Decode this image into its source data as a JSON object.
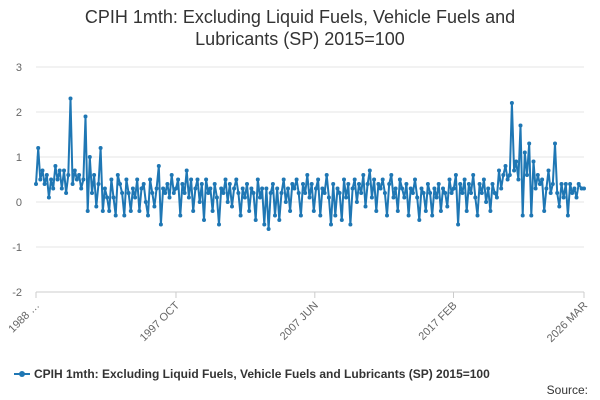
{
  "chart_data": {
    "type": "line",
    "title_lines": [
      "CPIH 1mth: Excluding Liquid Fuels, Vehicle Fuels and",
      "Lubricants (SP) 2015=100"
    ],
    "xlabel": "",
    "ylabel": "",
    "ylim": [
      -2,
      3
    ],
    "yticks": [
      "3",
      "2",
      "1",
      "0",
      "-1",
      "-2"
    ],
    "xticks": [
      "1988 …",
      "1997 OCT",
      "2007 JUN",
      "2017 FEB",
      "2026 MAR"
    ],
    "series": [
      {
        "name": "CPIH 1mth: Excluding Liquid Fuels, Vehicle Fuels and Lubricants (SP) 2015=100",
        "color": "#1f77b4",
        "start": "1988 JAN",
        "end": "2026 MAR",
        "points": [
          [
            1988.0,
            0.4
          ],
          [
            1988.15,
            1.2
          ],
          [
            1988.3,
            0.5
          ],
          [
            1988.45,
            0.7
          ],
          [
            1988.6,
            0.4
          ],
          [
            1988.75,
            0.6
          ],
          [
            1988.9,
            0.1
          ],
          [
            1989.05,
            0.5
          ],
          [
            1989.2,
            0.3
          ],
          [
            1989.35,
            0.8
          ],
          [
            1989.5,
            0.5
          ],
          [
            1989.65,
            0.7
          ],
          [
            1989.8,
            0.3
          ],
          [
            1989.95,
            0.7
          ],
          [
            1990.1,
            0.2
          ],
          [
            1990.25,
            0.6
          ],
          [
            1990.4,
            2.3
          ],
          [
            1990.55,
            0.4
          ],
          [
            1990.7,
            0.7
          ],
          [
            1990.85,
            0.5
          ],
          [
            1991.0,
            0.6
          ],
          [
            1991.15,
            0.3
          ],
          [
            1991.3,
            0.5
          ],
          [
            1991.45,
            1.9
          ],
          [
            1991.6,
            -0.2
          ],
          [
            1991.75,
            1.0
          ],
          [
            1991.9,
            0.2
          ],
          [
            1992.05,
            0.6
          ],
          [
            1992.2,
            -0.1
          ],
          [
            1992.35,
            0.4
          ],
          [
            1992.5,
            1.2
          ],
          [
            1992.65,
            -0.2
          ],
          [
            1992.8,
            0.3
          ],
          [
            1992.95,
            0.1
          ],
          [
            1993.1,
            -0.2
          ],
          [
            1993.25,
            0.5
          ],
          [
            1993.4,
            0.1
          ],
          [
            1993.55,
            -0.3
          ],
          [
            1993.7,
            0.6
          ],
          [
            1993.85,
            0.4
          ],
          [
            1994.0,
            0.2
          ],
          [
            1994.15,
            -0.3
          ],
          [
            1994.3,
            0.5
          ],
          [
            1994.45,
            0.2
          ],
          [
            1994.6,
            -0.2
          ],
          [
            1994.75,
            0.3
          ],
          [
            1994.9,
            0.1
          ],
          [
            1995.05,
            0.5
          ],
          [
            1995.2,
            -0.2
          ],
          [
            1995.35,
            0.3
          ],
          [
            1995.5,
            0.4
          ],
          [
            1995.65,
            0.0
          ],
          [
            1995.8,
            -0.3
          ],
          [
            1995.95,
            0.5
          ],
          [
            1996.1,
            0.2
          ],
          [
            1996.25,
            -0.1
          ],
          [
            1996.4,
            0.3
          ],
          [
            1996.55,
            0.8
          ],
          [
            1996.7,
            -0.5
          ],
          [
            1996.85,
            0.3
          ],
          [
            1997.0,
            0.2
          ],
          [
            1997.15,
            0.4
          ],
          [
            1997.3,
            0.1
          ],
          [
            1997.45,
            0.6
          ],
          [
            1997.6,
            0.2
          ],
          [
            1997.75,
            0.3
          ],
          [
            1997.9,
            0.5
          ],
          [
            1998.05,
            -0.3
          ],
          [
            1998.2,
            0.4
          ],
          [
            1998.35,
            0.2
          ],
          [
            1998.5,
            0.7
          ],
          [
            1998.65,
            0.1
          ],
          [
            1998.8,
            0.5
          ],
          [
            1998.95,
            -0.2
          ],
          [
            1999.1,
            0.3
          ],
          [
            1999.25,
            0.5
          ],
          [
            1999.4,
            0.0
          ],
          [
            1999.55,
            0.4
          ],
          [
            1999.7,
            -0.4
          ],
          [
            1999.85,
            0.5
          ],
          [
            2000.0,
            0.2
          ],
          [
            2000.15,
            0.3
          ],
          [
            2000.3,
            -0.2
          ],
          [
            2000.45,
            0.4
          ],
          [
            2000.6,
            0.1
          ],
          [
            2000.75,
            -0.5
          ],
          [
            2000.9,
            0.3
          ],
          [
            2001.05,
            0.2
          ],
          [
            2001.2,
            0.5
          ],
          [
            2001.35,
            0.0
          ],
          [
            2001.5,
            0.4
          ],
          [
            2001.65,
            -0.1
          ],
          [
            2001.8,
            0.3
          ],
          [
            2001.95,
            0.5
          ],
          [
            2002.1,
            0.2
          ],
          [
            2002.25,
            -0.3
          ],
          [
            2002.4,
            0.3
          ],
          [
            2002.55,
            0.1
          ],
          [
            2002.7,
            0.4
          ],
          [
            2002.85,
            -0.2
          ],
          [
            2003.0,
            0.3
          ],
          [
            2003.15,
            0.2
          ],
          [
            2003.3,
            -0.4
          ],
          [
            2003.45,
            0.5
          ],
          [
            2003.6,
            0.1
          ],
          [
            2003.75,
            0.3
          ],
          [
            2003.9,
            -0.5
          ],
          [
            2004.05,
            0.3
          ],
          [
            2004.2,
            -0.6
          ],
          [
            2004.35,
            0.2
          ],
          [
            2004.5,
            0.4
          ],
          [
            2004.65,
            -0.3
          ],
          [
            2004.8,
            0.3
          ],
          [
            2004.95,
            -0.4
          ],
          [
            2005.1,
            0.2
          ],
          [
            2005.25,
            0.5
          ],
          [
            2005.4,
            0.0
          ],
          [
            2005.55,
            0.3
          ],
          [
            2005.7,
            -0.2
          ],
          [
            2005.85,
            0.4
          ],
          [
            2006.0,
            0.3
          ],
          [
            2006.15,
            0.5
          ],
          [
            2006.3,
            0.2
          ],
          [
            2006.45,
            -0.3
          ],
          [
            2006.6,
            0.4
          ],
          [
            2006.75,
            0.2
          ],
          [
            2006.9,
            0.6
          ],
          [
            2007.05,
            0.1
          ],
          [
            2007.2,
            0.4
          ],
          [
            2007.35,
            -0.2
          ],
          [
            2007.5,
            0.3
          ],
          [
            2007.65,
            0.5
          ],
          [
            2007.8,
            -0.3
          ],
          [
            2007.95,
            0.3
          ],
          [
            2008.1,
            0.2
          ],
          [
            2008.25,
            0.6
          ],
          [
            2008.4,
            0.1
          ],
          [
            2008.55,
            -0.5
          ],
          [
            2008.7,
            0.4
          ],
          [
            2008.85,
            -0.3
          ],
          [
            2009.0,
            0.3
          ],
          [
            2009.15,
            0.2
          ],
          [
            2009.3,
            -0.4
          ],
          [
            2009.45,
            0.5
          ],
          [
            2009.6,
            0.1
          ],
          [
            2009.75,
            0.4
          ],
          [
            2009.9,
            -0.5
          ],
          [
            2010.05,
            0.3
          ],
          [
            2010.2,
            0.5
          ],
          [
            2010.35,
            0.0
          ],
          [
            2010.5,
            0.4
          ],
          [
            2010.65,
            0.2
          ],
          [
            2010.8,
            0.6
          ],
          [
            2010.95,
            -0.1
          ],
          [
            2011.1,
            0.4
          ],
          [
            2011.25,
            0.7
          ],
          [
            2011.4,
            0.1
          ],
          [
            2011.55,
            0.5
          ],
          [
            2011.7,
            -0.2
          ],
          [
            2011.85,
            0.4
          ],
          [
            2012.0,
            0.3
          ],
          [
            2012.15,
            0.5
          ],
          [
            2012.3,
            0.2
          ],
          [
            2012.45,
            -0.3
          ],
          [
            2012.6,
            0.4
          ],
          [
            2012.75,
            0.6
          ],
          [
            2012.9,
            0.1
          ],
          [
            2013.05,
            0.3
          ],
          [
            2013.2,
            -0.2
          ],
          [
            2013.35,
            0.5
          ],
          [
            2013.5,
            0.3
          ],
          [
            2013.65,
            0.1
          ],
          [
            2013.8,
            0.4
          ],
          [
            2013.95,
            -0.3
          ],
          [
            2014.1,
            0.3
          ],
          [
            2014.25,
            0.2
          ],
          [
            2014.4,
            0.5
          ],
          [
            2014.55,
            0.1
          ],
          [
            2014.7,
            -0.4
          ],
          [
            2014.85,
            0.3
          ],
          [
            2015.0,
            0.2
          ],
          [
            2015.15,
            -0.2
          ],
          [
            2015.3,
            0.4
          ],
          [
            2015.45,
            0.2
          ],
          [
            2015.6,
            -0.3
          ],
          [
            2015.75,
            0.3
          ],
          [
            2015.9,
            0.1
          ],
          [
            2016.05,
            0.4
          ],
          [
            2016.2,
            -0.2
          ],
          [
            2016.35,
            0.3
          ],
          [
            2016.5,
            0.2
          ],
          [
            2016.65,
            -0.1
          ],
          [
            2016.8,
            0.5
          ],
          [
            2016.95,
            0.2
          ],
          [
            2017.1,
            0.3
          ],
          [
            2017.25,
            0.6
          ],
          [
            2017.4,
            -0.5
          ],
          [
            2017.55,
            0.4
          ],
          [
            2017.7,
            0.2
          ],
          [
            2017.85,
            0.5
          ],
          [
            2018.0,
            -0.2
          ],
          [
            2018.15,
            0.4
          ],
          [
            2018.3,
            0.2
          ],
          [
            2018.45,
            0.6
          ],
          [
            2018.6,
            0.1
          ],
          [
            2018.75,
            -0.3
          ],
          [
            2018.9,
            0.4
          ],
          [
            2019.05,
            0.2
          ],
          [
            2019.2,
            0.5
          ],
          [
            2019.35,
            0.0
          ],
          [
            2019.5,
            0.3
          ],
          [
            2019.65,
            -0.2
          ],
          [
            2019.8,
            0.4
          ],
          [
            2019.95,
            0.2
          ],
          [
            2020.1,
            0.1
          ],
          [
            2020.25,
            0.7
          ],
          [
            2020.4,
            0.3
          ],
          [
            2020.55,
            0.6
          ],
          [
            2020.7,
            0.8
          ],
          [
            2020.85,
            0.5
          ],
          [
            2021.0,
            0.6
          ],
          [
            2021.15,
            2.2
          ],
          [
            2021.3,
            0.7
          ],
          [
            2021.45,
            0.9
          ],
          [
            2021.6,
            0.5
          ],
          [
            2021.75,
            1.7
          ],
          [
            2021.9,
            -0.3
          ],
          [
            2022.05,
            1.1
          ],
          [
            2022.2,
            0.6
          ],
          [
            2022.35,
            1.3
          ],
          [
            2022.5,
            -0.3
          ],
          [
            2022.65,
            0.9
          ],
          [
            2022.8,
            0.3
          ],
          [
            2022.95,
            0.6
          ],
          [
            2023.1,
            0.4
          ],
          [
            2023.25,
            0.5
          ],
          [
            2023.4,
            -0.2
          ],
          [
            2023.55,
            0.3
          ],
          [
            2023.7,
            0.7
          ],
          [
            2023.85,
            0.2
          ],
          [
            2024.0,
            0.4
          ],
          [
            2024.15,
            1.3
          ],
          [
            2024.3,
            0.2
          ],
          [
            2024.45,
            -0.1
          ],
          [
            2024.6,
            0.4
          ],
          [
            2024.75,
            0.1
          ],
          [
            2024.9,
            0.4
          ],
          [
            2025.05,
            -0.3
          ],
          [
            2025.2,
            0.4
          ],
          [
            2025.35,
            0.2
          ],
          [
            2025.5,
            0.3
          ],
          [
            2025.65,
            0.1
          ],
          [
            2025.8,
            0.4
          ],
          [
            2026.0,
            0.3
          ],
          [
            2026.17,
            0.3
          ]
        ]
      }
    ]
  },
  "legend_label": "CPIH 1mth: Excluding Liquid Fuels, Vehicle Fuels and Lubricants (SP) 2015=100",
  "source_label": "Source:"
}
